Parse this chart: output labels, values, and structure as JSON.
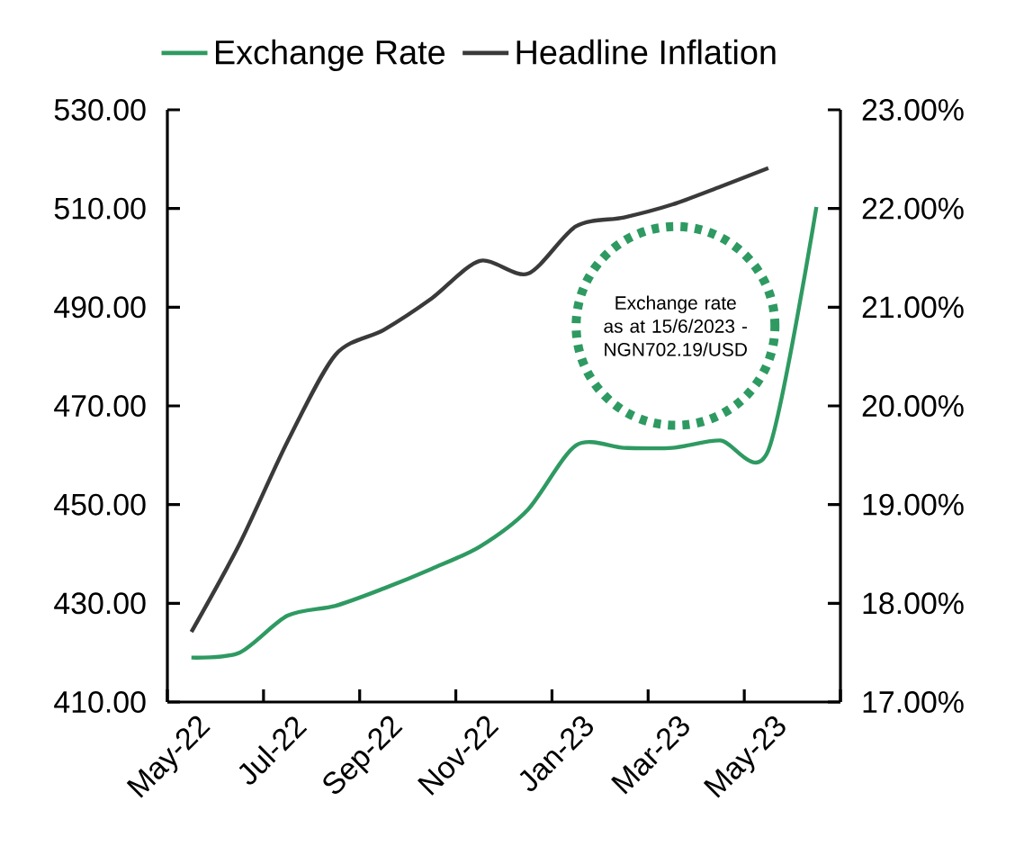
{
  "chart_data": {
    "type": "line",
    "categories": [
      "May-22",
      null,
      "Jul-22",
      null,
      "Sep-22",
      null,
      "Nov-22",
      null,
      "Jan-23",
      null,
      "Mar-23",
      null,
      "May-23",
      null
    ],
    "series": [
      {
        "name": "Exchange Rate",
        "color": "#2e9a62",
        "values": [
          419,
          420,
          427.5,
          429.5,
          433,
          437,
          441.5,
          449,
          462,
          461.5,
          461.5,
          463,
          461,
          510.3
        ]
      },
      {
        "name": "Headline Inflation",
        "color": "#3a3a3a",
        "axis": "y2",
        "values": [
          17.71,
          18.6,
          19.64,
          20.52,
          20.77,
          21.09,
          21.47,
          21.34,
          21.82,
          21.91,
          22.04,
          22.22,
          22.41,
          null
        ]
      }
    ],
    "ylim": [
      410,
      530
    ],
    "yticks": [
      {
        "value": 410,
        "label": "410.00"
      },
      {
        "value": 430,
        "label": "430.00"
      },
      {
        "value": 450,
        "label": "450.00"
      },
      {
        "value": 470,
        "label": "470.00"
      },
      {
        "value": 490,
        "label": "490.00"
      },
      {
        "value": 510,
        "label": "510.00"
      },
      {
        "value": 530,
        "label": "530.00"
      }
    ],
    "y2lim": [
      17,
      23
    ],
    "y2ticks": [
      {
        "value": 17,
        "label": "17.00%"
      },
      {
        "value": 18,
        "label": "18.00%"
      },
      {
        "value": 19,
        "label": "19.00%"
      },
      {
        "value": 20,
        "label": "20.00%"
      },
      {
        "value": 21,
        "label": "21.00%"
      },
      {
        "value": 22,
        "label": "22.00%"
      },
      {
        "value": 23,
        "label": "23.00%"
      }
    ],
    "annotations": [
      "Exchange rate as at 15/6/2023 - NGN702.19/USD"
    ],
    "grid": false,
    "legend": "top",
    "marker": "none",
    "line_style": "solid"
  }
}
